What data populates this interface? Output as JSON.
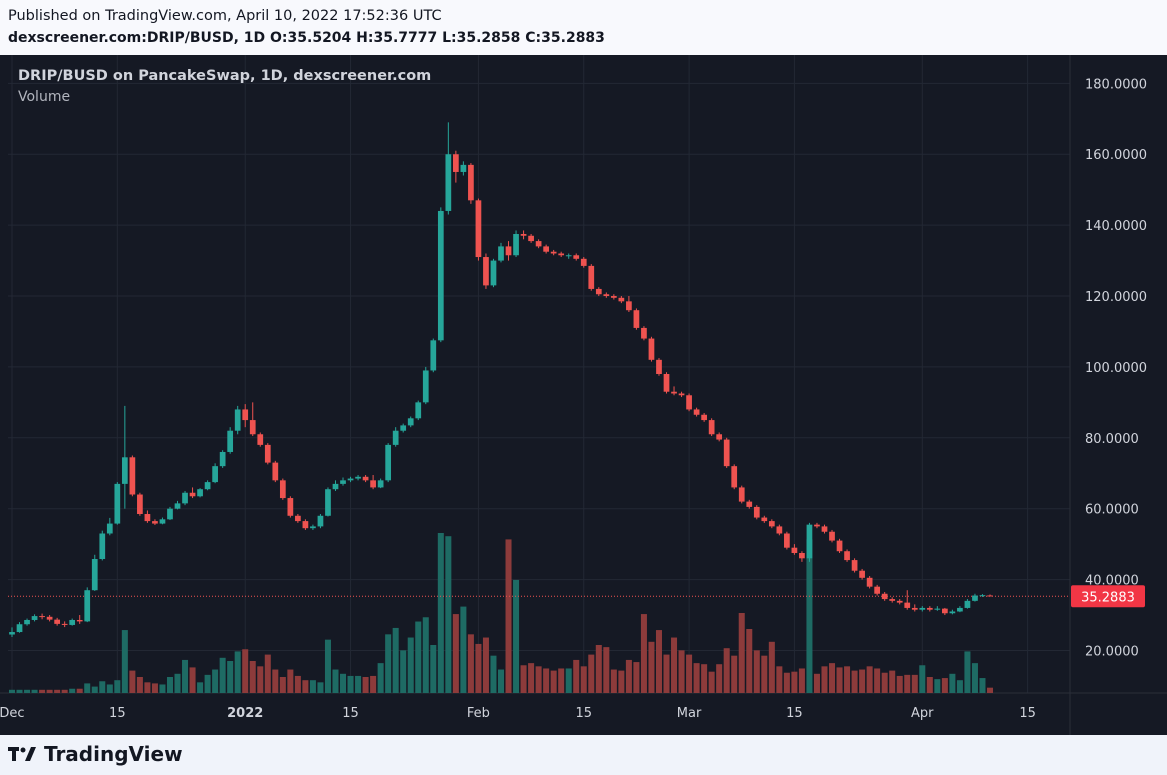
{
  "header": {
    "published": "Published on TradingView.com, April 10, 2022 17:52:36 UTC",
    "ohlc": "dexscreener.com:DRIP/BUSD, 1D O:35.5204 H:35.7777 L:35.2858 C:35.2883"
  },
  "legend": {
    "title": "DRIP/BUSD on PancakeSwap, 1D, dexscreener.com",
    "volume": "Volume"
  },
  "footer": {
    "brand": "TradingView"
  },
  "colors": {
    "background": "#151924",
    "grid": "#232834",
    "up": "#26a69a",
    "down": "#ef5350",
    "up_volume": "#1e6b64",
    "down_volume": "#8d3b3b",
    "axis_text": "#d1d4dc",
    "last_price_bg": "#f23645"
  },
  "chart_data": {
    "type": "candlestick",
    "y_axis_ticks": [
      "180.0000",
      "160.0000",
      "140.0000",
      "120.0000",
      "100.0000",
      "80.0000",
      "60.0000",
      "40.0000",
      "20.0000"
    ],
    "y_axis_values": [
      180,
      160,
      140,
      120,
      100,
      80,
      60,
      40,
      20
    ],
    "x_axis_ticks": [
      "Dec",
      "15",
      "2022",
      "15",
      "Feb",
      "15",
      "Mar",
      "15",
      "Apr",
      "15"
    ],
    "ylim": [
      8,
      188
    ],
    "last_price": 35.2883,
    "last_price_label": "35.2883",
    "volume_scale_note": "relative",
    "candles": [
      {
        "date": "2021-12-01",
        "o": 24.5,
        "h": 26.5,
        "c": 25.2,
        "l": 23.8,
        "v": 0.03
      },
      {
        "date": "2021-12-02",
        "o": 25.2,
        "h": 28.0,
        "c": 27.4,
        "l": 25.0,
        "v": 0.03
      },
      {
        "date": "2021-12-03",
        "o": 27.4,
        "h": 29.0,
        "c": 28.6,
        "l": 27.0,
        "v": 0.03
      },
      {
        "date": "2021-12-04",
        "o": 28.6,
        "h": 30.2,
        "c": 29.7,
        "l": 28.2,
        "v": 0.03
      },
      {
        "date": "2021-12-05",
        "o": 29.7,
        "h": 30.4,
        "c": 29.5,
        "l": 28.8,
        "v": 0.03
      },
      {
        "date": "2021-12-06",
        "o": 29.5,
        "h": 30.0,
        "c": 28.7,
        "l": 28.2,
        "v": 0.03
      },
      {
        "date": "2021-12-07",
        "o": 28.7,
        "h": 29.2,
        "c": 27.5,
        "l": 27.0,
        "v": 0.03
      },
      {
        "date": "2021-12-08",
        "o": 27.5,
        "h": 28.2,
        "c": 27.2,
        "l": 26.6,
        "v": 0.03
      },
      {
        "date": "2021-12-09",
        "o": 27.2,
        "h": 29.0,
        "c": 28.6,
        "l": 27.0,
        "v": 0.04
      },
      {
        "date": "2021-12-10",
        "o": 28.6,
        "h": 30.0,
        "c": 28.2,
        "l": 27.5,
        "v": 0.04
      },
      {
        "date": "2021-12-11",
        "o": 28.2,
        "h": 37.8,
        "c": 37.0,
        "l": 28.0,
        "v": 0.09
      },
      {
        "date": "2021-12-12",
        "o": 37.0,
        "h": 47.0,
        "c": 45.8,
        "l": 36.8,
        "v": 0.06
      },
      {
        "date": "2021-12-13",
        "o": 45.8,
        "h": 53.8,
        "c": 53.0,
        "l": 45.4,
        "v": 0.11
      },
      {
        "date": "2021-12-14",
        "o": 53.0,
        "h": 57.4,
        "c": 55.8,
        "l": 52.5,
        "v": 0.08
      },
      {
        "date": "2021-12-15",
        "o": 55.8,
        "h": 67.5,
        "c": 67.0,
        "l": 55.5,
        "v": 0.12
      },
      {
        "date": "2021-12-16",
        "o": 67.0,
        "h": 89.0,
        "c": 74.5,
        "l": 60.0,
        "v": 0.59
      },
      {
        "date": "2021-12-17",
        "o": 74.5,
        "h": 75.0,
        "c": 64.0,
        "l": 63.5,
        "v": 0.21
      },
      {
        "date": "2021-12-18",
        "o": 64.0,
        "h": 64.5,
        "c": 58.5,
        "l": 58.0,
        "v": 0.15
      },
      {
        "date": "2021-12-19",
        "o": 58.5,
        "h": 59.5,
        "c": 56.5,
        "l": 56.0,
        "v": 0.1
      },
      {
        "date": "2021-12-20",
        "o": 56.5,
        "h": 57.0,
        "c": 55.8,
        "l": 55.4,
        "v": 0.09
      },
      {
        "date": "2021-12-21",
        "o": 55.8,
        "h": 57.5,
        "c": 57.0,
        "l": 55.6,
        "v": 0.08
      },
      {
        "date": "2021-12-22",
        "o": 57.0,
        "h": 60.5,
        "c": 60.0,
        "l": 56.8,
        "v": 0.15
      },
      {
        "date": "2021-12-23",
        "o": 60.0,
        "h": 62.2,
        "c": 61.5,
        "l": 59.8,
        "v": 0.18
      },
      {
        "date": "2021-12-24",
        "o": 61.5,
        "h": 65.0,
        "c": 64.5,
        "l": 61.0,
        "v": 0.31
      },
      {
        "date": "2021-12-25",
        "o": 64.5,
        "h": 66.0,
        "c": 63.5,
        "l": 63.0,
        "v": 0.24
      },
      {
        "date": "2021-12-26",
        "o": 63.5,
        "h": 65.8,
        "c": 65.5,
        "l": 63.2,
        "v": 0.1
      },
      {
        "date": "2021-12-27",
        "o": 65.5,
        "h": 68.0,
        "c": 67.5,
        "l": 65.2,
        "v": 0.17
      },
      {
        "date": "2021-12-28",
        "o": 67.5,
        "h": 72.8,
        "c": 72.0,
        "l": 67.2,
        "v": 0.22
      },
      {
        "date": "2021-12-29",
        "o": 72.0,
        "h": 76.5,
        "c": 76.0,
        "l": 71.5,
        "v": 0.33
      },
      {
        "date": "2021-12-30",
        "o": 76.0,
        "h": 83.0,
        "c": 82.0,
        "l": 75.5,
        "v": 0.3
      },
      {
        "date": "2021-12-31",
        "o": 82.0,
        "h": 89.0,
        "c": 88.0,
        "l": 81.0,
        "v": 0.39
      },
      {
        "date": "2022-01-01",
        "o": 88.0,
        "h": 89.5,
        "c": 85.0,
        "l": 83.0,
        "v": 0.41
      },
      {
        "date": "2022-01-02",
        "o": 85.0,
        "h": 90.0,
        "c": 81.0,
        "l": 80.5,
        "v": 0.3
      },
      {
        "date": "2022-01-03",
        "o": 81.0,
        "h": 81.5,
        "c": 78.0,
        "l": 77.5,
        "v": 0.25
      },
      {
        "date": "2022-01-04",
        "o": 78.0,
        "h": 78.5,
        "c": 73.0,
        "l": 72.5,
        "v": 0.36
      },
      {
        "date": "2022-01-05",
        "o": 73.0,
        "h": 73.5,
        "c": 68.0,
        "l": 67.5,
        "v": 0.22
      },
      {
        "date": "2022-01-06",
        "o": 68.0,
        "h": 68.5,
        "c": 63.0,
        "l": 62.5,
        "v": 0.15
      },
      {
        "date": "2022-01-07",
        "o": 63.0,
        "h": 63.5,
        "c": 58.0,
        "l": 57.5,
        "v": 0.22
      },
      {
        "date": "2022-01-08",
        "o": 58.0,
        "h": 58.5,
        "c": 56.5,
        "l": 56.0,
        "v": 0.16
      },
      {
        "date": "2022-01-09",
        "o": 56.5,
        "h": 57.0,
        "c": 54.5,
        "l": 54.0,
        "v": 0.12
      },
      {
        "date": "2022-01-10",
        "o": 54.5,
        "h": 55.5,
        "c": 55.0,
        "l": 54.0,
        "v": 0.12
      },
      {
        "date": "2022-01-11",
        "o": 55.0,
        "h": 58.5,
        "c": 58.0,
        "l": 54.5,
        "v": 0.1
      },
      {
        "date": "2022-01-12",
        "o": 58.0,
        "h": 66.0,
        "c": 65.5,
        "l": 57.8,
        "v": 0.5
      },
      {
        "date": "2022-01-13",
        "o": 65.5,
        "h": 68.0,
        "c": 67.0,
        "l": 65.0,
        "v": 0.22
      },
      {
        "date": "2022-01-14",
        "o": 67.0,
        "h": 68.8,
        "c": 68.0,
        "l": 66.5,
        "v": 0.18
      },
      {
        "date": "2022-01-15",
        "o": 68.0,
        "h": 69.0,
        "c": 68.5,
        "l": 67.5,
        "v": 0.16
      },
      {
        "date": "2022-01-16",
        "o": 68.5,
        "h": 69.5,
        "c": 69.0,
        "l": 68.0,
        "v": 0.16
      },
      {
        "date": "2022-01-17",
        "o": 69.0,
        "h": 69.5,
        "c": 68.0,
        "l": 67.5,
        "v": 0.15
      },
      {
        "date": "2022-01-18",
        "o": 68.0,
        "h": 69.5,
        "c": 66.0,
        "l": 65.5,
        "v": 0.16
      },
      {
        "date": "2022-01-19",
        "o": 66.0,
        "h": 68.5,
        "c": 68.0,
        "l": 65.8,
        "v": 0.28
      },
      {
        "date": "2022-01-20",
        "o": 68.0,
        "h": 78.5,
        "c": 78.0,
        "l": 67.5,
        "v": 0.55
      },
      {
        "date": "2022-01-21",
        "o": 78.0,
        "h": 83.0,
        "c": 82.0,
        "l": 77.5,
        "v": 0.61
      },
      {
        "date": "2022-01-22",
        "o": 82.0,
        "h": 84.0,
        "c": 83.5,
        "l": 81.5,
        "v": 0.4
      },
      {
        "date": "2022-01-23",
        "o": 83.5,
        "h": 86.0,
        "c": 85.5,
        "l": 83.0,
        "v": 0.52
      },
      {
        "date": "2022-01-24",
        "o": 85.5,
        "h": 90.5,
        "c": 90.0,
        "l": 85.0,
        "v": 0.67
      },
      {
        "date": "2022-01-25",
        "o": 90.0,
        "h": 100.0,
        "c": 99.0,
        "l": 89.5,
        "v": 0.71
      },
      {
        "date": "2022-01-26",
        "o": 99.0,
        "h": 108.0,
        "c": 107.5,
        "l": 98.5,
        "v": 0.45
      },
      {
        "date": "2022-01-27",
        "o": 107.5,
        "h": 145.0,
        "c": 144.0,
        "l": 107.0,
        "v": 1.5
      },
      {
        "date": "2022-01-28",
        "o": 144.0,
        "h": 169.0,
        "c": 160.0,
        "l": 143.0,
        "v": 1.47
      },
      {
        "date": "2022-01-29",
        "o": 160.0,
        "h": 161.0,
        "c": 155.0,
        "l": 152.0,
        "v": 0.74
      },
      {
        "date": "2022-01-30",
        "o": 155.0,
        "h": 158.0,
        "c": 157.0,
        "l": 154.0,
        "v": 0.81
      },
      {
        "date": "2022-01-31",
        "o": 157.0,
        "h": 157.5,
        "c": 147.0,
        "l": 146.0,
        "v": 0.55
      },
      {
        "date": "2022-02-01",
        "o": 147.0,
        "h": 147.5,
        "c": 131.0,
        "l": 130.0,
        "v": 0.46
      },
      {
        "date": "2022-02-02",
        "o": 131.0,
        "h": 132.0,
        "c": 123.0,
        "l": 122.0,
        "v": 0.52
      },
      {
        "date": "2022-02-03",
        "o": 123.0,
        "h": 130.5,
        "c": 130.0,
        "l": 122.5,
        "v": 0.35
      },
      {
        "date": "2022-02-04",
        "o": 130.0,
        "h": 135.0,
        "c": 134.0,
        "l": 129.5,
        "v": 0.22
      },
      {
        "date": "2022-02-05",
        "o": 134.0,
        "h": 135.5,
        "c": 131.5,
        "l": 130.0,
        "v": 1.44
      },
      {
        "date": "2022-02-06",
        "o": 131.5,
        "h": 138.5,
        "c": 137.5,
        "l": 131.0,
        "v": 1.06
      },
      {
        "date": "2022-02-07",
        "o": 137.5,
        "h": 138.5,
        "c": 137.0,
        "l": 136.0,
        "v": 0.26
      },
      {
        "date": "2022-02-08",
        "o": 137.0,
        "h": 137.5,
        "c": 135.5,
        "l": 135.0,
        "v": 0.28
      },
      {
        "date": "2022-02-09",
        "o": 135.5,
        "h": 136.0,
        "c": 134.0,
        "l": 133.5,
        "v": 0.25
      },
      {
        "date": "2022-02-10",
        "o": 134.0,
        "h": 134.5,
        "c": 132.5,
        "l": 132.0,
        "v": 0.23
      },
      {
        "date": "2022-02-11",
        "o": 132.5,
        "h": 133.0,
        "c": 132.0,
        "l": 131.5,
        "v": 0.21
      },
      {
        "date": "2022-02-12",
        "o": 132.0,
        "h": 132.5,
        "c": 131.5,
        "l": 131.0,
        "v": 0.23
      },
      {
        "date": "2022-02-13",
        "o": 131.5,
        "h": 132.0,
        "c": 131.5,
        "l": 130.5,
        "v": 0.23
      },
      {
        "date": "2022-02-14",
        "o": 131.5,
        "h": 132.0,
        "c": 130.5,
        "l": 130.0,
        "v": 0.31
      },
      {
        "date": "2022-02-15",
        "o": 130.5,
        "h": 131.0,
        "c": 128.5,
        "l": 128.0,
        "v": 0.25
      },
      {
        "date": "2022-02-16",
        "o": 128.5,
        "h": 129.0,
        "c": 122.0,
        "l": 121.5,
        "v": 0.36
      },
      {
        "date": "2022-02-17",
        "o": 122.0,
        "h": 122.5,
        "c": 120.5,
        "l": 120.0,
        "v": 0.45
      },
      {
        "date": "2022-02-18",
        "o": 120.5,
        "h": 121.0,
        "c": 120.0,
        "l": 119.5,
        "v": 0.43
      },
      {
        "date": "2022-02-19",
        "o": 120.0,
        "h": 120.5,
        "c": 119.5,
        "l": 119.0,
        "v": 0.22
      },
      {
        "date": "2022-02-20",
        "o": 119.5,
        "h": 120.0,
        "c": 118.5,
        "l": 118.0,
        "v": 0.21
      },
      {
        "date": "2022-02-21",
        "o": 118.5,
        "h": 120.0,
        "c": 116.0,
        "l": 115.5,
        "v": 0.31
      },
      {
        "date": "2022-02-22",
        "o": 116.0,
        "h": 116.5,
        "c": 111.0,
        "l": 110.5,
        "v": 0.29
      },
      {
        "date": "2022-02-23",
        "o": 111.0,
        "h": 111.5,
        "c": 108.0,
        "l": 107.5,
        "v": 0.74
      },
      {
        "date": "2022-02-24",
        "o": 108.0,
        "h": 108.5,
        "c": 102.0,
        "l": 101.5,
        "v": 0.48
      },
      {
        "date": "2022-02-25",
        "o": 102.0,
        "h": 102.5,
        "c": 98.0,
        "l": 97.5,
        "v": 0.59
      },
      {
        "date": "2022-02-26",
        "o": 98.0,
        "h": 98.5,
        "c": 93.0,
        "l": 92.5,
        "v": 0.36
      },
      {
        "date": "2022-02-27",
        "o": 93.0,
        "h": 94.5,
        "c": 92.5,
        "l": 92.0,
        "v": 0.52
      },
      {
        "date": "2022-02-28",
        "o": 92.5,
        "h": 93.0,
        "c": 92.0,
        "l": 91.5,
        "v": 0.4
      },
      {
        "date": "2022-03-01",
        "o": 92.0,
        "h": 92.5,
        "c": 88.0,
        "l": 87.5,
        "v": 0.36
      },
      {
        "date": "2022-03-02",
        "o": 88.0,
        "h": 88.5,
        "c": 86.5,
        "l": 86.0,
        "v": 0.28
      },
      {
        "date": "2022-03-03",
        "o": 86.5,
        "h": 87.0,
        "c": 85.0,
        "l": 84.5,
        "v": 0.27
      },
      {
        "date": "2022-03-04",
        "o": 85.0,
        "h": 85.5,
        "c": 81.0,
        "l": 80.5,
        "v": 0.2
      },
      {
        "date": "2022-03-05",
        "o": 81.0,
        "h": 81.5,
        "c": 79.5,
        "l": 79.0,
        "v": 0.27
      },
      {
        "date": "2022-03-06",
        "o": 79.5,
        "h": 80.0,
        "c": 72.0,
        "l": 71.5,
        "v": 0.42
      },
      {
        "date": "2022-03-07",
        "o": 72.0,
        "h": 72.5,
        "c": 66.0,
        "l": 65.5,
        "v": 0.35
      },
      {
        "date": "2022-03-08",
        "o": 66.0,
        "h": 66.5,
        "c": 62.0,
        "l": 61.5,
        "v": 0.75
      },
      {
        "date": "2022-03-09",
        "o": 62.0,
        "h": 62.5,
        "c": 60.5,
        "l": 60.0,
        "v": 0.6
      },
      {
        "date": "2022-03-10",
        "o": 60.5,
        "h": 61.0,
        "c": 57.5,
        "l": 57.0,
        "v": 0.4
      },
      {
        "date": "2022-03-11",
        "o": 57.5,
        "h": 58.0,
        "c": 56.5,
        "l": 56.0,
        "v": 0.35
      },
      {
        "date": "2022-03-12",
        "o": 56.5,
        "h": 57.0,
        "c": 55.0,
        "l": 54.5,
        "v": 0.48
      },
      {
        "date": "2022-03-13",
        "o": 55.0,
        "h": 55.5,
        "c": 53.0,
        "l": 52.5,
        "v": 0.25
      },
      {
        "date": "2022-03-14",
        "o": 53.0,
        "h": 53.5,
        "c": 49.0,
        "l": 48.5,
        "v": 0.19
      },
      {
        "date": "2022-03-15",
        "o": 49.0,
        "h": 50.0,
        "c": 47.5,
        "l": 47.0,
        "v": 0.2
      },
      {
        "date": "2022-03-16",
        "o": 47.5,
        "h": 48.0,
        "c": 46.0,
        "l": 45.0,
        "v": 0.23
      },
      {
        "date": "2022-03-17",
        "o": 46.0,
        "h": 56.0,
        "c": 55.5,
        "l": 45.0,
        "v": 1.44
      },
      {
        "date": "2022-03-18",
        "o": 55.5,
        "h": 56.0,
        "c": 55.0,
        "l": 54.5,
        "v": 0.18
      },
      {
        "date": "2022-03-19",
        "o": 55.0,
        "h": 55.5,
        "c": 53.5,
        "l": 53.0,
        "v": 0.25
      },
      {
        "date": "2022-03-20",
        "o": 53.5,
        "h": 54.0,
        "c": 51.0,
        "l": 50.5,
        "v": 0.28
      },
      {
        "date": "2022-03-21",
        "o": 51.0,
        "h": 51.5,
        "c": 48.0,
        "l": 47.5,
        "v": 0.24
      },
      {
        "date": "2022-03-22",
        "o": 48.0,
        "h": 48.5,
        "c": 45.5,
        "l": 45.0,
        "v": 0.25
      },
      {
        "date": "2022-03-23",
        "o": 45.5,
        "h": 46.0,
        "c": 42.5,
        "l": 42.0,
        "v": 0.21
      },
      {
        "date": "2022-03-24",
        "o": 42.5,
        "h": 43.0,
        "c": 40.5,
        "l": 40.0,
        "v": 0.22
      },
      {
        "date": "2022-03-25",
        "o": 40.5,
        "h": 41.0,
        "c": 38.0,
        "l": 37.5,
        "v": 0.25
      },
      {
        "date": "2022-03-26",
        "o": 38.0,
        "h": 38.5,
        "c": 36.0,
        "l": 35.5,
        "v": 0.23
      },
      {
        "date": "2022-03-27",
        "o": 36.0,
        "h": 36.5,
        "c": 34.5,
        "l": 34.0,
        "v": 0.19
      },
      {
        "date": "2022-03-28",
        "o": 34.5,
        "h": 35.0,
        "c": 34.0,
        "l": 33.5,
        "v": 0.21
      },
      {
        "date": "2022-03-29",
        "o": 34.0,
        "h": 34.5,
        "c": 33.5,
        "l": 33.0,
        "v": 0.16
      },
      {
        "date": "2022-03-30",
        "o": 33.5,
        "h": 37.0,
        "c": 32.0,
        "l": 31.5,
        "v": 0.17
      },
      {
        "date": "2022-03-31",
        "o": 32.0,
        "h": 33.0,
        "c": 31.5,
        "l": 31.0,
        "v": 0.17
      },
      {
        "date": "2022-04-01",
        "o": 31.5,
        "h": 32.5,
        "c": 32.0,
        "l": 31.0,
        "v": 0.26
      },
      {
        "date": "2022-04-02",
        "o": 32.0,
        "h": 32.5,
        "c": 31.5,
        "l": 31.0,
        "v": 0.15
      },
      {
        "date": "2022-04-03",
        "o": 31.5,
        "h": 32.5,
        "c": 31.8,
        "l": 31.2,
        "v": 0.13
      },
      {
        "date": "2022-04-04",
        "o": 31.8,
        "h": 32.0,
        "c": 30.5,
        "l": 30.0,
        "v": 0.14
      },
      {
        "date": "2022-04-05",
        "o": 30.5,
        "h": 31.5,
        "c": 31.0,
        "l": 30.2,
        "v": 0.18
      },
      {
        "date": "2022-04-06",
        "o": 31.0,
        "h": 32.5,
        "c": 32.0,
        "l": 30.8,
        "v": 0.12
      },
      {
        "date": "2022-04-07",
        "o": 32.0,
        "h": 34.5,
        "c": 34.0,
        "l": 31.8,
        "v": 0.39
      },
      {
        "date": "2022-04-08",
        "o": 34.0,
        "h": 36.0,
        "c": 35.5,
        "l": 33.8,
        "v": 0.28
      },
      {
        "date": "2022-04-09",
        "o": 35.5,
        "h": 35.9,
        "c": 35.6,
        "l": 35.1,
        "v": 0.14
      },
      {
        "date": "2022-04-10",
        "o": 35.5204,
        "h": 35.7777,
        "c": 35.2883,
        "l": 35.2858,
        "v": 0.05
      }
    ]
  }
}
